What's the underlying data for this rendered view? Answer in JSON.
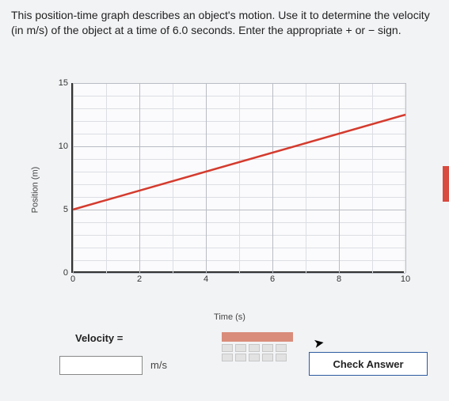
{
  "question_text": "This position-time graph describes an object's motion. Use it to determine the velocity (in m/s) of the object at a time of 6.0 seconds. Enter the appropriate + or − sign.",
  "chart": {
    "type": "line",
    "xlabel": "Time (s)",
    "ylabel": "Position (m)",
    "xlim": [
      0,
      10
    ],
    "ylim": [
      0,
      15
    ],
    "xticks": [
      0,
      2,
      4,
      6,
      8,
      10
    ],
    "yticks": [
      0,
      5,
      10,
      15
    ],
    "minor_x_step": 1,
    "minor_y_step": 1,
    "line_points": [
      [
        0,
        5
      ],
      [
        10,
        12.5
      ]
    ],
    "line_color": "#d43b2e",
    "line_width": 2.5,
    "major_grid_color": "#b9bcc4",
    "minor_grid_color": "#dcdee3",
    "background_color": "#fbfbfd",
    "axis_color": "#333333",
    "label_fontsize": 11,
    "tick_fontsize": 11
  },
  "input": {
    "prompt": "Velocity =",
    "value": "",
    "unit": "m/s"
  },
  "check_button": "Check Answer"
}
